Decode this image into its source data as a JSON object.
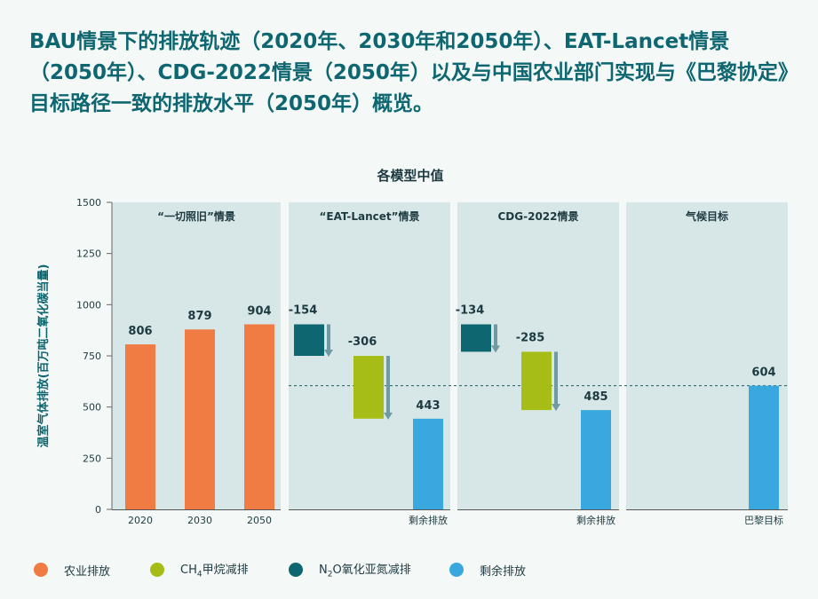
{
  "title": "BAU情景下的排放轨迹（2020年、2030年和2050年）、EAT-Lancet情景（2050年）、CDG-2022情景（2050年）以及与中国农业部门实现与《巴黎协定》目标路径一致的排放水平（2050年）概览。",
  "colors": {
    "agriculture": "#f07c43",
    "ch4": "#a7bd17",
    "n2o": "#0e6670",
    "residual": "#3aa8de",
    "panel": "#d7e7e8",
    "text_dark": "#0e6670"
  },
  "chart_data": {
    "type": "bar",
    "subtitle": "各模型中值",
    "ylabel": "温室气体排放(百万吨二氧化碳当量)",
    "ylim": [
      0,
      1500
    ],
    "yticks": [
      "0",
      "250",
      "500",
      "750",
      "1000",
      "1250",
      "1500"
    ],
    "reference_line": {
      "value": 604
    },
    "panels": [
      {
        "title": "“一切照旧”情景",
        "bars": [
          {
            "category": "2020",
            "value": 806,
            "label": "806",
            "series": "agriculture"
          },
          {
            "category": "2030",
            "value": 879,
            "label": "879",
            "series": "agriculture"
          },
          {
            "category": "2050",
            "value": 904,
            "label": "904",
            "series": "agriculture"
          }
        ]
      },
      {
        "title": "“EAT-Lancet”情景",
        "waterfall": [
          {
            "series": "n2o",
            "from": 904,
            "to": 750,
            "label": "-154"
          },
          {
            "series": "ch4",
            "from": 750,
            "to": 443,
            "label": "-306"
          },
          {
            "series": "residual",
            "from": 443,
            "to": 0,
            "label": "443"
          }
        ],
        "xlabel": "剩余排放"
      },
      {
        "title": "CDG-2022情景",
        "waterfall": [
          {
            "series": "n2o",
            "from": 904,
            "to": 770,
            "label": "-134"
          },
          {
            "series": "ch4",
            "from": 770,
            "to": 485,
            "label": "-285"
          },
          {
            "series": "residual",
            "from": 485,
            "to": 0,
            "label": "485"
          }
        ],
        "xlabel": "剩余排放"
      },
      {
        "title": "气候目标",
        "bars": [
          {
            "category": "巴黎目标",
            "value": 604,
            "label": "604",
            "series": "residual"
          }
        ]
      }
    ]
  },
  "legend": [
    {
      "series": "agriculture",
      "label": "农业排放"
    },
    {
      "series": "ch4",
      "label_main": "CH",
      "label_sub": "4",
      "label_rest": "甲烷减排"
    },
    {
      "series": "n2o",
      "label_main": "N",
      "label_sub": "2",
      "label_rest": "O氧化亚氮减排"
    },
    {
      "series": "residual",
      "label": "剩余排放"
    }
  ]
}
